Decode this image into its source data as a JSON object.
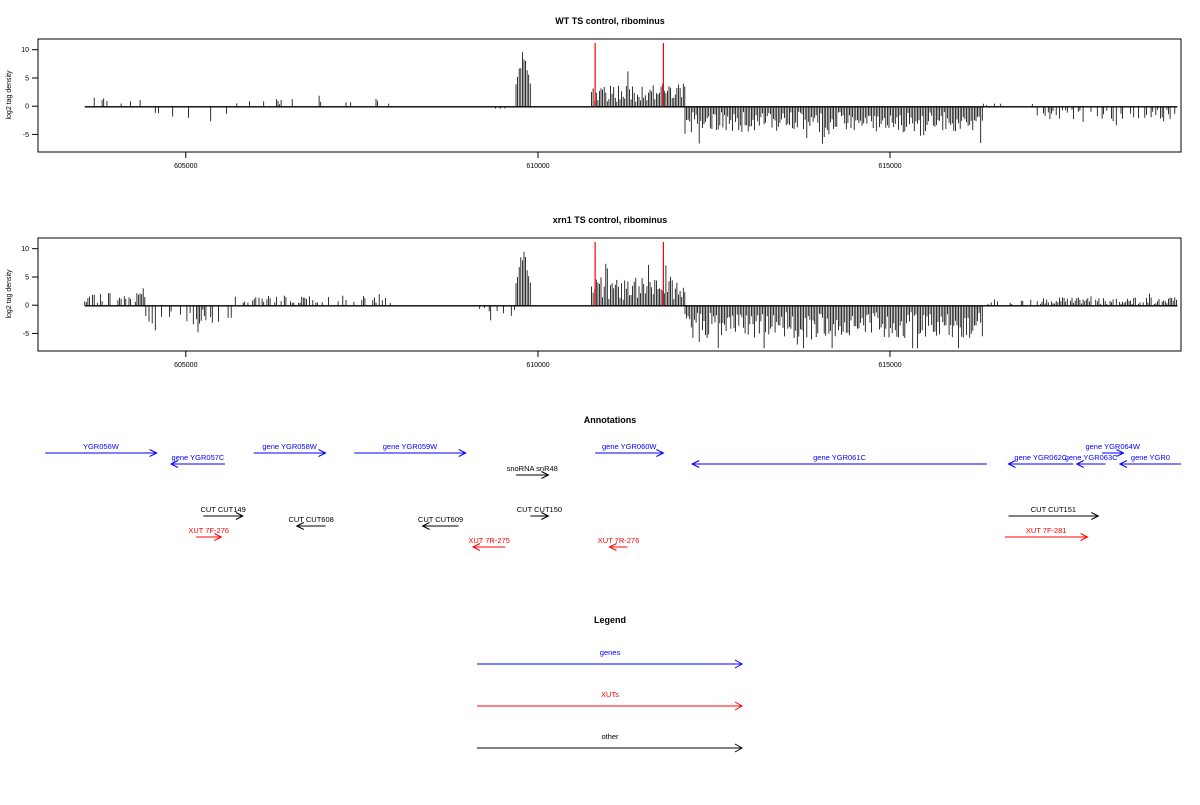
{
  "chart_data": [
    {
      "type": "bar",
      "title": "WT TS control, ribominus",
      "ylabel": "log2 tag density",
      "xlabel": "",
      "xlim": [
        602800,
        618700
      ],
      "ylim": [
        -8,
        12
      ],
      "xticks": [
        605000,
        610000,
        615000
      ],
      "xtick_labels": [
        "605000",
        "610000",
        "615000"
      ],
      "yticks": [
        -5,
        0,
        5,
        10
      ],
      "ytick_labels": [
        "-5",
        "0",
        "5",
        "10"
      ],
      "markers": [
        610550,
        611500
      ],
      "marker_color": "#ff0000",
      "grid": false,
      "profile": [
        {
          "start": 603450,
          "end": 604300,
          "mean": 1.2,
          "density": 0.25
        },
        {
          "start": 604300,
          "end": 605500,
          "mean": -1.8,
          "density": 0.15
        },
        {
          "start": 605500,
          "end": 607700,
          "mean": 1.0,
          "density": 0.15
        },
        {
          "start": 608900,
          "end": 609450,
          "mean": -0.5,
          "density": 0.1
        },
        {
          "start": 609450,
          "end": 609650,
          "mean": 8.0,
          "density": 1.0
        },
        {
          "start": 610500,
          "end": 611800,
          "mean": 2.8,
          "density": 1.0
        },
        {
          "start": 611800,
          "end": 615950,
          "mean": -3.0,
          "density": 1.0
        },
        {
          "start": 615950,
          "end": 616700,
          "mean": 0.6,
          "density": 0.15
        },
        {
          "start": 616700,
          "end": 618650,
          "mean": -1.5,
          "density": 0.45
        }
      ]
    },
    {
      "type": "bar",
      "title": "xrn1 TS control, ribominus",
      "ylabel": "log2 tag density",
      "xlabel": "",
      "xlim": [
        602800,
        618700
      ],
      "ylim": [
        -8,
        12
      ],
      "xticks": [
        605000,
        610000,
        615000
      ],
      "xtick_labels": [
        "605000",
        "610000",
        "615000"
      ],
      "yticks": [
        -5,
        0,
        5,
        10
      ],
      "ytick_labels": [
        "-5",
        "0",
        "5",
        "10"
      ],
      "markers": [
        610550,
        611500
      ],
      "marker_color": "#ff0000",
      "grid": false,
      "profile": [
        {
          "start": 603450,
          "end": 604300,
          "mean": 1.5,
          "density": 0.6
        },
        {
          "start": 604300,
          "end": 605500,
          "mean": -2.2,
          "density": 0.5
        },
        {
          "start": 605500,
          "end": 607700,
          "mean": 1.2,
          "density": 0.4
        },
        {
          "start": 608900,
          "end": 609450,
          "mean": -1.2,
          "density": 0.3
        },
        {
          "start": 609450,
          "end": 609650,
          "mean": 8.0,
          "density": 1.0
        },
        {
          "start": 610500,
          "end": 611800,
          "mean": 3.5,
          "density": 1.0
        },
        {
          "start": 611800,
          "end": 615950,
          "mean": -3.8,
          "density": 1.0
        },
        {
          "start": 615950,
          "end": 616700,
          "mean": 0.8,
          "density": 0.2
        },
        {
          "start": 616700,
          "end": 618650,
          "mean": 1.0,
          "density": 0.9
        }
      ]
    }
  ],
  "annotations": {
    "title": "Annotations",
    "features": [
      {
        "label": "YGR056W",
        "start": 602900,
        "end": 604450,
        "strand": "+",
        "row": 0,
        "color": "#0000ff"
      },
      {
        "label": "gene YGR057C",
        "start": 604650,
        "end": 605400,
        "strand": "-",
        "row": 1,
        "color": "#0000ff"
      },
      {
        "label": "gene YGR058W",
        "start": 605800,
        "end": 606800,
        "strand": "+",
        "row": 0,
        "color": "#0000ff"
      },
      {
        "label": "gene YGR059W",
        "start": 607200,
        "end": 608750,
        "strand": "+",
        "row": 0,
        "color": "#0000ff"
      },
      {
        "label": "snoRNA snR48",
        "start": 609450,
        "end": 609900,
        "strand": "+",
        "row": 2,
        "color": "#000000"
      },
      {
        "label": "gene YGR060W",
        "start": 610550,
        "end": 611500,
        "strand": "+",
        "row": 0,
        "color": "#0000ff"
      },
      {
        "label": "gene YGR061C",
        "start": 611900,
        "end": 616000,
        "strand": "-",
        "row": 1,
        "color": "#0000ff"
      },
      {
        "label": "gene YGR062C",
        "start": 616300,
        "end": 617200,
        "strand": "-",
        "row": 1,
        "color": "#0000ff"
      },
      {
        "label": "gene YGR063C",
        "start": 617250,
        "end": 617650,
        "strand": "-",
        "row": 1,
        "color": "#0000ff"
      },
      {
        "label": "gene YGR064W",
        "start": 617600,
        "end": 617900,
        "strand": "+",
        "row": 0,
        "color": "#0000ff"
      },
      {
        "label": "gene YGR0",
        "start": 617850,
        "end": 618700,
        "strand": "-",
        "row": 1,
        "color": "#0000ff"
      },
      {
        "label": "CUT CUT149",
        "start": 605100,
        "end": 605650,
        "strand": "+",
        "row": 3,
        "color": "#000000"
      },
      {
        "label": "CUT CUT608",
        "start": 606400,
        "end": 606800,
        "strand": "-",
        "row": 4,
        "color": "#000000"
      },
      {
        "label": "CUT CUT609",
        "start": 608150,
        "end": 608650,
        "strand": "-",
        "row": 4,
        "color": "#000000"
      },
      {
        "label": "CUT CUT150",
        "start": 609650,
        "end": 609900,
        "strand": "+",
        "row": 3,
        "color": "#000000"
      },
      {
        "label": "CUT CUT151",
        "start": 616300,
        "end": 617550,
        "strand": "+",
        "row": 3,
        "color": "#000000"
      },
      {
        "label": "XUT 7F-276",
        "start": 605000,
        "end": 605350,
        "strand": "+",
        "row": 5,
        "color": "#ff0000"
      },
      {
        "label": "XUT 7R-275",
        "start": 608850,
        "end": 609300,
        "strand": "-",
        "row": 6,
        "color": "#ff0000"
      },
      {
        "label": "XUT 7R-276",
        "start": 610750,
        "end": 611000,
        "strand": "-",
        "row": 6,
        "color": "#ff0000"
      },
      {
        "label": "XUT 7F-281",
        "start": 616250,
        "end": 617400,
        "strand": "+",
        "row": 5,
        "color": "#ff0000"
      }
    ]
  },
  "legend": {
    "title": "Legend",
    "items": [
      {
        "label": "genes",
        "color": "#0000ff"
      },
      {
        "label": "XUTs",
        "color": "#ff0000"
      },
      {
        "label": "other",
        "color": "#000000"
      }
    ]
  }
}
